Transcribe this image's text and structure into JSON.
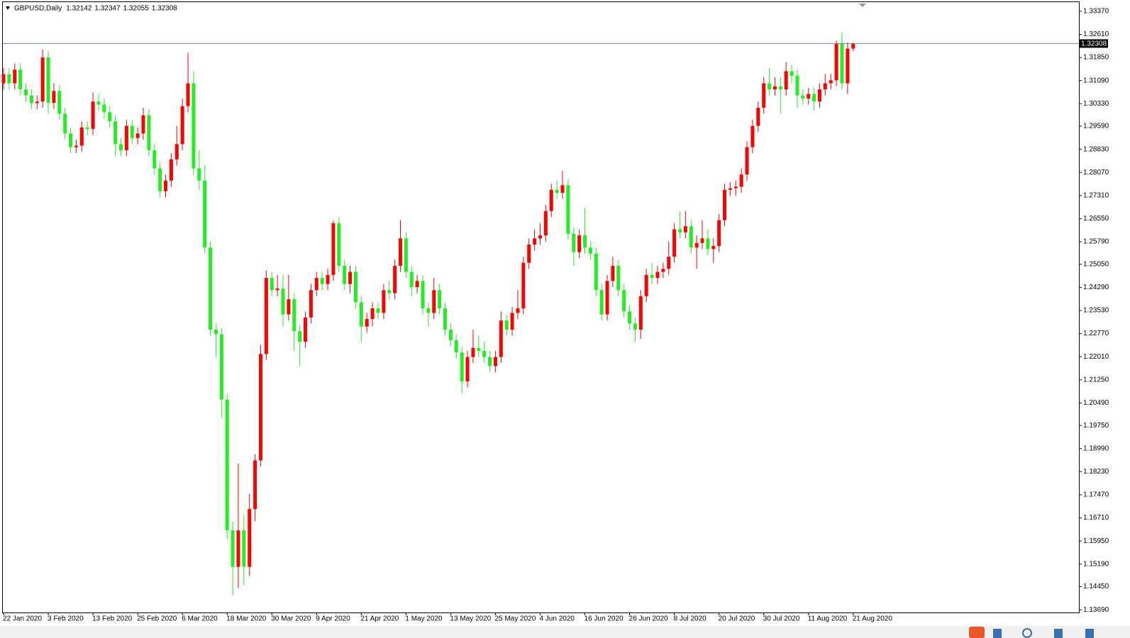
{
  "chart_data": {
    "type": "candlestick",
    "title": "GBPUSD,Daily",
    "header_values": [
      1.32142,
      1.32347,
      1.32055,
      1.32308
    ],
    "categories": [
      "22 Jan 2020",
      null,
      null,
      null,
      null,
      null,
      null,
      null,
      "3 Feb 2020",
      null,
      null,
      null,
      null,
      null,
      null,
      null,
      "13 Feb 2020",
      null,
      null,
      null,
      null,
      null,
      null,
      null,
      "25 Feb 2020",
      null,
      null,
      null,
      null,
      null,
      null,
      null,
      "6 Mar 2020",
      null,
      null,
      null,
      null,
      null,
      null,
      null,
      "18 Mar 2020",
      null,
      null,
      null,
      null,
      null,
      null,
      null,
      "30 Mar 2020",
      null,
      null,
      null,
      null,
      null,
      null,
      null,
      "9 Apr 2020",
      null,
      null,
      null,
      null,
      null,
      null,
      null,
      "21 Apr 2020",
      null,
      null,
      null,
      null,
      null,
      null,
      null,
      "1 May 2020",
      null,
      null,
      null,
      null,
      null,
      null,
      null,
      "13 May 2020",
      null,
      null,
      null,
      null,
      null,
      null,
      null,
      "25 May 2020",
      null,
      null,
      null,
      null,
      null,
      null,
      null,
      "4 Jun 2020",
      null,
      null,
      null,
      null,
      null,
      null,
      null,
      "16 Jun 2020",
      null,
      null,
      null,
      null,
      null,
      null,
      null,
      "26 Jun 2020",
      null,
      null,
      null,
      null,
      null,
      null,
      null,
      "8 Jul 2020",
      null,
      null,
      null,
      null,
      null,
      null,
      null,
      "20 Jul 2020",
      null,
      null,
      null,
      null,
      null,
      null,
      null,
      "30 Jul 2020",
      null,
      null,
      null,
      null,
      null,
      null,
      null,
      "11 Aug 2020",
      null,
      null,
      null,
      null,
      null,
      null,
      null,
      "21 Aug 2020"
    ],
    "open": [
      1.31,
      1.313,
      1.31,
      1.3145,
      1.308,
      1.306,
      1.3035,
      1.304,
      1.3185,
      1.3036,
      1.3075,
      1.3,
      1.2935,
      1.289,
      1.2895,
      1.2955,
      1.295,
      1.304,
      1.303,
      1.3005,
      1.2975,
      1.29,
      1.288,
      1.296,
      1.292,
      1.2935,
      1.2995,
      1.288,
      1.282,
      1.2745,
      1.278,
      1.285,
      1.29,
      1.3025,
      1.31,
      1.282,
      1.278,
      1.256,
      1.229,
      1.2275,
      1.206,
      1.163,
      1.151,
      1.163,
      1.151,
      1.17,
      1.186,
      1.221,
      1.246,
      1.242,
      1.2425,
      1.234,
      1.239,
      1.2285,
      1.225,
      1.233,
      1.242,
      1.246,
      1.244,
      1.247,
      1.264,
      1.25,
      1.244,
      1.248,
      1.238,
      1.23,
      1.2325,
      1.236,
      1.2345,
      1.242,
      1.241,
      1.25,
      1.259,
      1.248,
      1.243,
      1.245,
      1.236,
      1.2345,
      1.242,
      1.236,
      1.229,
      1.2255,
      1.2215,
      1.212,
      1.22,
      1.223,
      1.222,
      1.22,
      1.217,
      1.22,
      1.232,
      1.229,
      1.2345,
      1.236,
      1.251,
      1.257,
      1.259,
      1.26,
      1.268,
      1.275,
      1.274,
      1.2765,
      1.2605,
      1.2545,
      1.26,
      1.256,
      1.254,
      1.242,
      1.234,
      1.245,
      1.25,
      1.242,
      1.235,
      1.231,
      1.229,
      1.24,
      1.247,
      1.246,
      1.248,
      1.249,
      1.253,
      1.262,
      1.261,
      1.263,
      1.256,
      1.2575,
      1.259,
      1.2555,
      1.2565,
      1.265,
      1.275,
      1.2755,
      1.276,
      1.28,
      1.289,
      1.296,
      1.302,
      1.31,
      1.308,
      1.309,
      1.308,
      1.314,
      1.3125,
      1.306,
      1.305,
      1.3065,
      1.304,
      1.308,
      1.31,
      1.311,
      1.323,
      1.31,
      1.32142
    ],
    "high": [
      1.315,
      1.315,
      1.3165,
      1.3165,
      1.31,
      1.308,
      1.306,
      1.3211,
      1.3205,
      1.31,
      1.3095,
      1.302,
      1.2955,
      1.2915,
      1.2975,
      1.2975,
      1.307,
      1.3065,
      1.305,
      1.3025,
      1.2995,
      1.292,
      1.298,
      1.298,
      1.2955,
      1.302,
      1.3015,
      1.29,
      1.284,
      1.28,
      1.287,
      1.296,
      1.305,
      1.32,
      1.314,
      1.288,
      1.283,
      1.258,
      1.231,
      1.2295,
      1.208,
      1.166,
      1.185,
      1.168,
      1.175,
      1.188,
      1.224,
      1.2485,
      1.248,
      1.247,
      1.247,
      1.247,
      1.241,
      1.2305,
      1.235,
      1.244,
      1.248,
      1.248,
      1.249,
      1.265,
      1.266,
      1.252,
      1.25,
      1.25,
      1.24,
      1.2345,
      1.238,
      1.238,
      1.244,
      1.245,
      1.252,
      1.265,
      1.261,
      1.25,
      1.247,
      1.247,
      1.238,
      1.246,
      1.244,
      1.238,
      1.231,
      1.2275,
      1.2235,
      1.222,
      1.229,
      1.227,
      1.225,
      1.222,
      1.222,
      1.235,
      1.234,
      1.2365,
      1.242,
      1.253,
      1.259,
      1.262,
      1.264,
      1.27,
      1.277,
      1.278,
      1.2812,
      1.2785,
      1.2625,
      1.262,
      1.269,
      1.258,
      1.256,
      1.244,
      1.247,
      1.253,
      1.252,
      1.244,
      1.237,
      1.233,
      1.242,
      1.249,
      1.251,
      1.25,
      1.251,
      1.258,
      1.264,
      1.268,
      1.268,
      1.265,
      1.26,
      1.265,
      1.262,
      1.259,
      1.267,
      1.277,
      1.2775,
      1.278,
      1.282,
      1.291,
      1.298,
      1.304,
      1.312,
      1.315,
      1.312,
      1.312,
      1.317,
      1.316,
      1.3145,
      1.308,
      1.3085,
      1.3085,
      1.31,
      1.313,
      1.313,
      1.324,
      1.3267,
      1.3235,
      1.32347
    ],
    "low": [
      1.308,
      1.308,
      1.308,
      1.306,
      1.304,
      1.3015,
      1.3015,
      1.302,
      1.3,
      1.3016,
      1.298,
      1.2915,
      1.287,
      1.287,
      1.2875,
      1.293,
      1.293,
      1.301,
      1.2985,
      1.2955,
      1.286,
      1.286,
      1.286,
      1.29,
      1.29,
      1.2915,
      1.286,
      1.28,
      1.2725,
      1.2725,
      1.276,
      1.283,
      1.288,
      1.3005,
      1.28,
      1.275,
      1.254,
      1.227,
      1.22,
      1.2,
      1.16,
      1.1416,
      1.144,
      1.145,
      1.148,
      1.166,
      1.184,
      1.219,
      1.24,
      1.24,
      1.23,
      1.232,
      1.222,
      1.217,
      1.223,
      1.231,
      1.24,
      1.242,
      1.242,
      1.245,
      1.248,
      1.242,
      1.241,
      1.236,
      1.225,
      1.228,
      1.23,
      1.2325,
      1.2325,
      1.239,
      1.239,
      1.248,
      1.246,
      1.24,
      1.241,
      1.234,
      1.23,
      1.2325,
      1.234,
      1.227,
      1.2235,
      1.2195,
      1.208,
      1.21,
      1.218,
      1.22,
      1.218,
      1.215,
      1.215,
      1.218,
      1.227,
      1.227,
      1.2325,
      1.234,
      1.249,
      1.255,
      1.257,
      1.258,
      1.266,
      1.272,
      1.272,
      1.2585,
      1.25,
      1.2525,
      1.254,
      1.252,
      1.24,
      1.232,
      1.232,
      1.243,
      1.24,
      1.233,
      1.229,
      1.225,
      1.226,
      1.238,
      1.244,
      1.244,
      1.246,
      1.247,
      1.251,
      1.259,
      1.259,
      1.254,
      1.249,
      1.2555,
      1.2535,
      1.251,
      1.2545,
      1.263,
      1.273,
      1.273,
      1.274,
      1.278,
      1.287,
      1.294,
      1.3,
      1.306,
      1.306,
      1.3,
      1.306,
      1.31,
      1.302,
      1.303,
      1.303,
      1.301,
      1.302,
      1.306,
      1.308,
      1.309,
      1.308,
      1.3065,
      1.32055
    ],
    "close": [
      1.313,
      1.31,
      1.3145,
      1.308,
      1.306,
      1.3035,
      1.304,
      1.3185,
      1.3036,
      1.3075,
      1.3,
      1.2935,
      1.289,
      1.2895,
      1.2955,
      1.295,
      1.304,
      1.303,
      1.3005,
      1.2975,
      1.29,
      1.288,
      1.296,
      1.292,
      1.2935,
      1.2995,
      1.288,
      1.282,
      1.2745,
      1.278,
      1.285,
      1.29,
      1.3025,
      1.31,
      1.282,
      1.278,
      1.256,
      1.229,
      1.2275,
      1.206,
      1.163,
      1.151,
      1.163,
      1.151,
      1.17,
      1.186,
      1.221,
      1.246,
      1.242,
      1.2425,
      1.234,
      1.239,
      1.2285,
      1.225,
      1.233,
      1.242,
      1.246,
      1.244,
      1.247,
      1.264,
      1.25,
      1.244,
      1.248,
      1.238,
      1.23,
      1.2325,
      1.236,
      1.2345,
      1.242,
      1.241,
      1.25,
      1.259,
      1.248,
      1.243,
      1.245,
      1.236,
      1.2345,
      1.242,
      1.236,
      1.229,
      1.2255,
      1.2215,
      1.212,
      1.22,
      1.223,
      1.222,
      1.22,
      1.217,
      1.22,
      1.232,
      1.229,
      1.2345,
      1.236,
      1.251,
      1.257,
      1.259,
      1.26,
      1.268,
      1.275,
      1.274,
      1.2765,
      1.2605,
      1.2545,
      1.26,
      1.256,
      1.254,
      1.242,
      1.234,
      1.245,
      1.25,
      1.242,
      1.235,
      1.231,
      1.229,
      1.24,
      1.247,
      1.246,
      1.248,
      1.249,
      1.253,
      1.262,
      1.261,
      1.263,
      1.256,
      1.2575,
      1.259,
      1.2555,
      1.2565,
      1.265,
      1.275,
      1.2755,
      1.276,
      1.28,
      1.289,
      1.296,
      1.302,
      1.31,
      1.308,
      1.309,
      1.308,
      1.314,
      1.3125,
      1.306,
      1.305,
      1.3065,
      1.304,
      1.308,
      1.31,
      1.311,
      1.323,
      1.31,
      1.3214,
      1.32308
    ],
    "up_color": "#ff0000",
    "down_color": "#22ee22",
    "ylim": [
      1.136,
      1.3367
    ],
    "yticks": [
      {
        "value": 1.3337,
        "label": "1.33370"
      },
      {
        "value": 1.3261,
        "label": "1.32610"
      },
      {
        "value": 1.3185,
        "label": "1.31850"
      },
      {
        "value": 1.3109,
        "label": "1.31090"
      },
      {
        "value": 1.3033,
        "label": "1.30330"
      },
      {
        "value": 1.2959,
        "label": "1.29590"
      },
      {
        "value": 1.2883,
        "label": "1.28830"
      },
      {
        "value": 1.2807,
        "label": "1.28070"
      },
      {
        "value": 1.2731,
        "label": "1.27310"
      },
      {
        "value": 1.2655,
        "label": "1.26550"
      },
      {
        "value": 1.2579,
        "label": "1.25790"
      },
      {
        "value": 1.2505,
        "label": "1.25050"
      },
      {
        "value": 1.2429,
        "label": "1.24290"
      },
      {
        "value": 1.2353,
        "label": "1.23530"
      },
      {
        "value": 1.2277,
        "label": "1.22770"
      },
      {
        "value": 1.2201,
        "label": "1.22010"
      },
      {
        "value": 1.2125,
        "label": "1.21250"
      },
      {
        "value": 1.2049,
        "label": "1.20490"
      },
      {
        "value": 1.1975,
        "label": "1.19750"
      },
      {
        "value": 1.1899,
        "label": "1.18990"
      },
      {
        "value": 1.1823,
        "label": "1.18230"
      },
      {
        "value": 1.1747,
        "label": "1.17470"
      },
      {
        "value": 1.1671,
        "label": "1.16710"
      },
      {
        "value": 1.1595,
        "label": "1.15950"
      },
      {
        "value": 1.1519,
        "label": "1.15190"
      },
      {
        "value": 1.1445,
        "label": "1.14450"
      },
      {
        "value": 1.1369,
        "label": "1.13690"
      }
    ],
    "current_price": 1.32308,
    "current_price_color": "#6f8294",
    "grid": false
  }
}
